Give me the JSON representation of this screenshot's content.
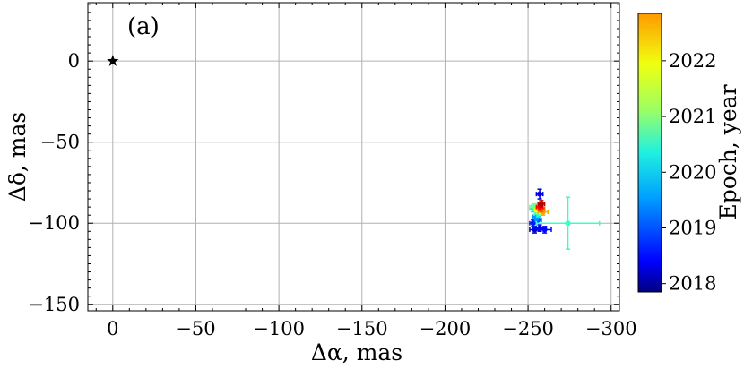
{
  "chart_data": {
    "type": "scatter",
    "panel_label": "(a)",
    "xlabel": "Δα, mas",
    "ylabel": "Δδ, mas",
    "xlim": [
      15,
      -305
    ],
    "ylim": [
      -154,
      36
    ],
    "x_ticks": [
      0,
      -50,
      -100,
      -150,
      -200,
      -250,
      -300
    ],
    "x_tick_labels": [
      "0",
      "−50",
      "−100",
      "−150",
      "−200",
      "−250",
      "−300"
    ],
    "y_ticks": [
      0,
      -50,
      -100,
      -150
    ],
    "y_tick_labels": [
      "0",
      "−50",
      "−100",
      "−150"
    ],
    "grid": true,
    "reference_star": {
      "x": 0,
      "y": 0,
      "marker": "star",
      "color": "#000000"
    },
    "points": [
      {
        "x": -257,
        "y": -82,
        "xerr": 2,
        "yerr": 3,
        "epoch": 2018.3
      },
      {
        "x": -254,
        "y": -104,
        "xerr": 3,
        "yerr": 2,
        "epoch": 2018.2
      },
      {
        "x": -257,
        "y": -103,
        "xerr": 4,
        "yerr": 2,
        "epoch": 2018.4
      },
      {
        "x": -260,
        "y": -104,
        "xerr": 4,
        "yerr": 2,
        "epoch": 2018.5
      },
      {
        "x": -253,
        "y": -100,
        "xerr": 2,
        "yerr": 2,
        "epoch": 2018.6
      },
      {
        "x": -256,
        "y": -98,
        "xerr": 2,
        "yerr": 2,
        "epoch": 2018.9
      },
      {
        "x": -255,
        "y": -96,
        "xerr": 2,
        "yerr": 2,
        "epoch": 2019.2
      },
      {
        "x": -253,
        "y": -91,
        "xerr": 2,
        "yerr": 2,
        "epoch": 2019.6
      },
      {
        "x": -256,
        "y": -94,
        "xerr": 2,
        "yerr": 2,
        "epoch": 2019.9
      },
      {
        "x": -274,
        "y": -100,
        "xerr": 19,
        "yerr": 16,
        "epoch": 2020.0
      },
      {
        "x": -254,
        "y": -90,
        "xerr": 3,
        "yerr": 2,
        "epoch": 2020.3
      },
      {
        "x": -258,
        "y": -93,
        "xerr": 2,
        "yerr": 2,
        "epoch": 2020.6
      },
      {
        "x": -256,
        "y": -92,
        "xerr": 2,
        "yerr": 2,
        "epoch": 2021.0
      },
      {
        "x": -259,
        "y": -93,
        "xerr": 3,
        "yerr": 2,
        "epoch": 2021.4
      },
      {
        "x": -258,
        "y": -91,
        "xerr": 2,
        "yerr": 2,
        "epoch": 2021.8
      },
      {
        "x": -257,
        "y": -90,
        "xerr": 2,
        "yerr": 2,
        "epoch": 2022.2
      },
      {
        "x": -258,
        "y": -88,
        "xerr": 2,
        "yerr": 2,
        "epoch": 2022.6
      }
    ],
    "colorbar": {
      "label": "Epoch, year",
      "colormap": "jet",
      "range": [
        2017.85,
        2022.85
      ],
      "ticks": [
        2018,
        2019,
        2020,
        2021,
        2022
      ],
      "tick_labels": [
        "2018",
        "2019",
        "2020",
        "2021",
        "2022"
      ]
    }
  }
}
